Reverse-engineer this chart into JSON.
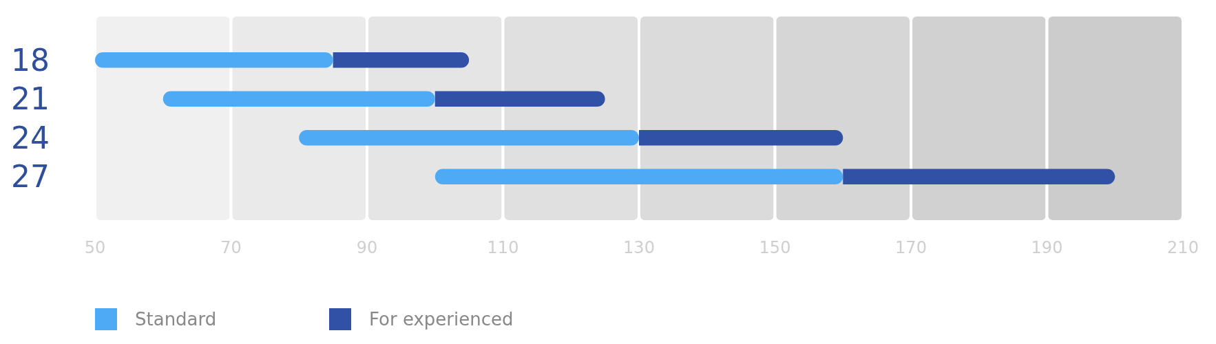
{
  "chart_data": {
    "type": "bar",
    "orientation": "horizontal",
    "categories": [
      "18",
      "21",
      "24",
      "27"
    ],
    "series": [
      {
        "name": "Standard",
        "color": "#4eaaf5",
        "base": [
          50,
          60,
          80,
          100
        ],
        "values": [
          35,
          40,
          50,
          60
        ]
      },
      {
        "name": "For  experienced",
        "color": "#3051a5",
        "base": [
          85,
          100,
          130,
          160
        ],
        "values": [
          20,
          25,
          30,
          40
        ]
      }
    ],
    "bands": [
      {
        "axis": "x",
        "from": 50,
        "to": 70,
        "color": "#f0f0f0"
      },
      {
        "axis": "x",
        "from": 70,
        "to": 90,
        "color": "#eaeaea"
      },
      {
        "axis": "x",
        "from": 90,
        "to": 110,
        "color": "#e5e5e5"
      },
      {
        "axis": "x",
        "from": 110,
        "to": 130,
        "color": "#e0e0e0"
      },
      {
        "axis": "x",
        "from": 130,
        "to": 150,
        "color": "#dbdbdb"
      },
      {
        "axis": "x",
        "from": 150,
        "to": 170,
        "color": "#d6d6d6"
      },
      {
        "axis": "x",
        "from": 170,
        "to": 190,
        "color": "#d1d1d1"
      },
      {
        "axis": "x",
        "from": 190,
        "to": 210,
        "color": "#cccccc"
      }
    ],
    "xlim": [
      50,
      210
    ],
    "xticks": [
      50,
      70,
      90,
      110,
      130,
      150,
      170,
      190,
      210
    ],
    "grid": false,
    "legend": "bottom left"
  }
}
